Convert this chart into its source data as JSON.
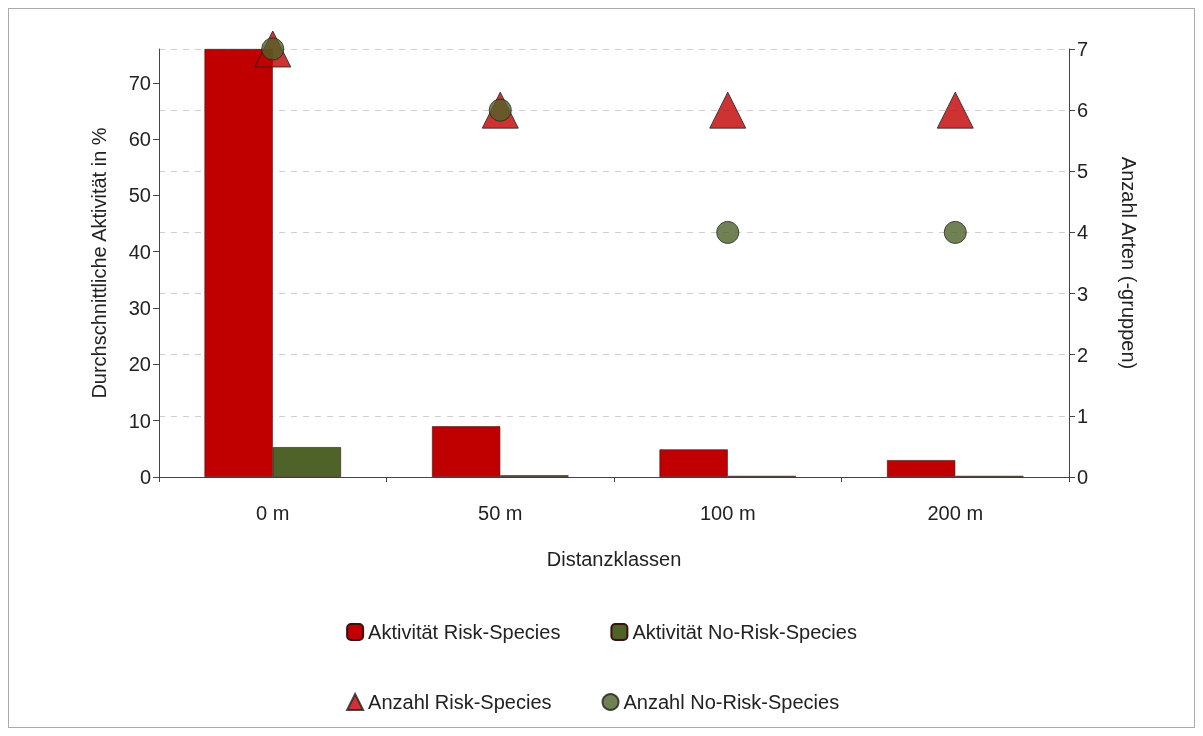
{
  "chart_data": {
    "type": "bar",
    "xlabel": "Distanzklassen",
    "ylabel": "Durchschnittliche Aktivität in %",
    "y2label": "Anzahl Arten (-gruppen)",
    "categories": [
      "0 m",
      "50 m",
      "100 m",
      "200 m"
    ],
    "series": [
      {
        "name": "Aktivität Risk-Species",
        "color": "#c00000",
        "values": [
          76,
          9.0,
          4.9,
          3.0
        ]
      },
      {
        "name": "Aktivität No-Risk-Species",
        "color": "#4f6228",
        "values": [
          5.3,
          0.3,
          0.2,
          0.2
        ]
      },
      {
        "name": "Anzahl Risk-Species",
        "type": "scatter",
        "axis": "y2",
        "marker": "triangle",
        "color": "#c00000",
        "values": [
          7,
          6,
          6,
          6
        ]
      },
      {
        "name": "Anzahl No-Risk-Species",
        "type": "scatter",
        "axis": "y2",
        "marker": "circle",
        "color": "#4f6228",
        "values": [
          7,
          6,
          4,
          4
        ]
      }
    ],
    "ylim": [
      0,
      76
    ],
    "yticks": [
      0,
      10,
      20,
      30,
      40,
      50,
      60,
      70
    ],
    "y2lim": [
      0,
      7
    ],
    "y2ticks": [
      0,
      1,
      2,
      3,
      4,
      5,
      6,
      7
    ],
    "grid": "y2",
    "legend": "bottom"
  }
}
